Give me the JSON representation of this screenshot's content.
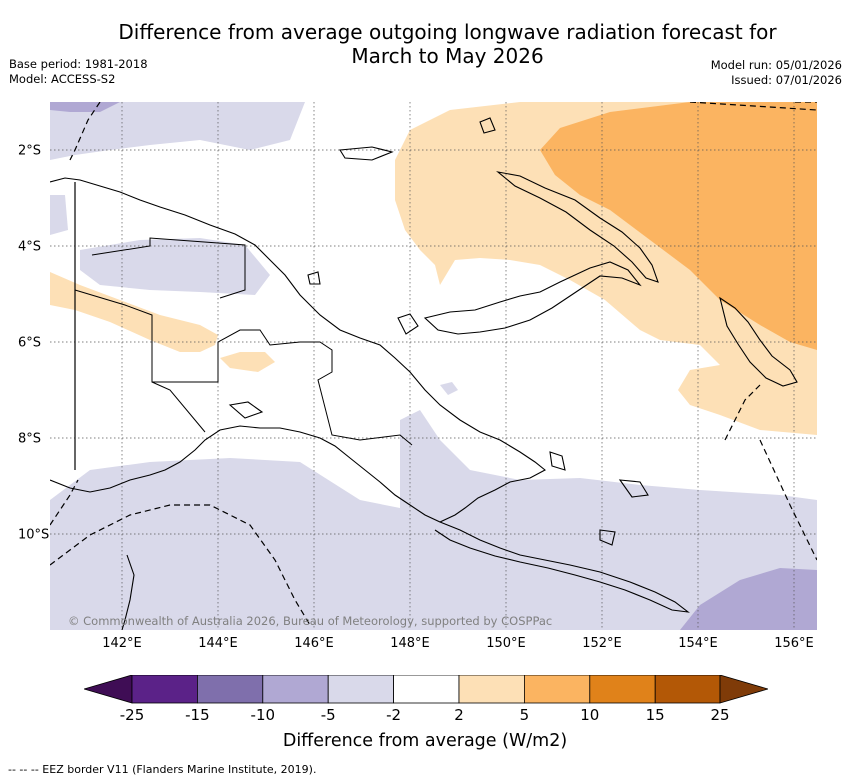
{
  "title_line1": "Difference from average outgoing longwave radiation forecast for",
  "title_line2": "March to May 2026",
  "base_period": "Base period: 1981-2018",
  "model": "Model: ACCESS-S2",
  "model_run": "Model run: 05/01/2026",
  "issued": "Issued: 07/01/2026",
  "copyright": "© Commonwealth of Australia 2026, Bureau of Meteorology, supported by COSPPac",
  "longitude_labels": [
    "142°E",
    "144°E",
    "146°E",
    "148°E",
    "150°E",
    "152°E",
    "154°E",
    "156°E"
  ],
  "latitude_labels": [
    "2°S",
    "4°S",
    "6°S",
    "8°S",
    "10°S"
  ],
  "colorbar": {
    "title": "Difference from average (W/m2)",
    "ticks": [
      "-25",
      "-15",
      "-10",
      "-5",
      "-2",
      "2",
      "5",
      "10",
      "15",
      "25"
    ],
    "colors": [
      "#3f0d55",
      "#5b2288",
      "#7f6fac",
      "#b0a8d3",
      "#d9d9ea",
      "#ffffff",
      "#fde0b6",
      "#fbb461",
      "#e0821a",
      "#b35806",
      "#7f3b08"
    ]
  },
  "footer": "-- -- -- EEZ border V11 (Flanders Marine Institute, 2019)."
}
